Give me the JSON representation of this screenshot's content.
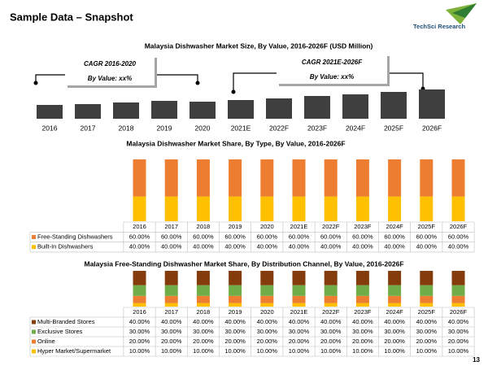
{
  "header": {
    "title": "Sample Data – Snapshot",
    "logo": "TechSci Research",
    "page_number": "13"
  },
  "chart_data": [
    {
      "type": "bar",
      "title": "Malaysia Dishwasher Market Size, By Value, 2016-2026F (USD Million)",
      "categories": [
        "2016",
        "2017",
        "2018",
        "2019",
        "2020",
        "2021E",
        "2022F",
        "2023F",
        "2024F",
        "2025F",
        "2026F"
      ],
      "values": [
        17,
        18,
        20,
        22,
        21,
        23,
        25,
        28,
        30,
        33,
        36
      ],
      "color": "#3f3f3f",
      "ylim": [
        0,
        40
      ],
      "annotations": [
        "CAGR 2016-2020",
        "By Value: xx%",
        "CAGR 2021E-2026F",
        "By Value: xx%"
      ]
    },
    {
      "type": "stacked_bar",
      "title": "Malaysia Dishwasher Market Share, By Type, By Value, 2016-2026F",
      "categories": [
        "2016",
        "2017",
        "2018",
        "2019",
        "2020",
        "2021E",
        "2022F",
        "2023F",
        "2024F",
        "2025F",
        "2026F"
      ],
      "ylim": [
        0,
        100
      ],
      "series": [
        {
          "name": "Free-Standing Dishwashers",
          "color": "#ed7d31",
          "values": [
            60,
            60,
            60,
            60,
            60,
            60,
            60,
            60,
            60,
            60,
            60
          ],
          "value_labels": [
            "60.00%",
            "60.00%",
            "60.00%",
            "60.00%",
            "60.00%",
            "60.00%",
            "60.00%",
            "60.00%",
            "60.00%",
            "60.00%",
            "60.00%"
          ]
        },
        {
          "name": "Built-In Dishwashers",
          "color": "#ffc000",
          "values": [
            40,
            40,
            40,
            40,
            40,
            40,
            40,
            40,
            40,
            40,
            40
          ],
          "value_labels": [
            "40.00%",
            "40.00%",
            "40.00%",
            "40.00%",
            "40.00%",
            "40.00%",
            "40.00%",
            "40.00%",
            "40.00%",
            "40.00%",
            "40.00%"
          ]
        }
      ]
    },
    {
      "type": "stacked_bar",
      "title": "Malaysia Free-Standing Dishwasher Market Share, By Distribution Channel, By Value, 2016-2026F",
      "categories": [
        "2016",
        "2017",
        "2018",
        "2019",
        "2020",
        "2021E",
        "2022F",
        "2023F",
        "2024F",
        "2025F",
        "2026F"
      ],
      "ylim": [
        0,
        100
      ],
      "series": [
        {
          "name": "Multi-Branded Stores",
          "color": "#843c0c",
          "values": [
            40,
            40,
            40,
            40,
            40,
            40,
            40,
            40,
            40,
            40,
            40
          ],
          "value_labels": [
            "40.00%",
            "40.00%",
            "40.00%",
            "40.00%",
            "40.00%",
            "40.00%",
            "40.00%",
            "40.00%",
            "40.00%",
            "40.00%",
            "40.00%"
          ]
        },
        {
          "name": "Exclusive Stores",
          "color": "#70ad47",
          "values": [
            30,
            30,
            30,
            30,
            30,
            30,
            30,
            30,
            30,
            30,
            30
          ],
          "value_labels": [
            "30.00%",
            "30.00%",
            "30.00%",
            "30.00%",
            "30.00%",
            "30.00%",
            "30.00%",
            "30.00%",
            "30.00%",
            "30.00%",
            "30.00%"
          ]
        },
        {
          "name": "Online",
          "color": "#ed7d31",
          "values": [
            20,
            20,
            20,
            20,
            20,
            20,
            20,
            20,
            20,
            20,
            20
          ],
          "value_labels": [
            "20.00%",
            "20.00%",
            "20.00%",
            "20.00%",
            "20.00%",
            "20.00%",
            "20.00%",
            "20.00%",
            "20.00%",
            "20.00%",
            "20.00%"
          ]
        },
        {
          "name": "Hyper Market/Supermarket",
          "color": "#ffc000",
          "values": [
            10,
            10,
            10,
            10,
            10,
            10,
            10,
            10,
            10,
            10,
            10
          ],
          "value_labels": [
            "10.00%",
            "10.00%",
            "10.00%",
            "10.00%",
            "10.00%",
            "10.00%",
            "10.00%",
            "10.00%",
            "10.00%",
            "10.00%",
            "10.00%"
          ]
        }
      ]
    }
  ]
}
